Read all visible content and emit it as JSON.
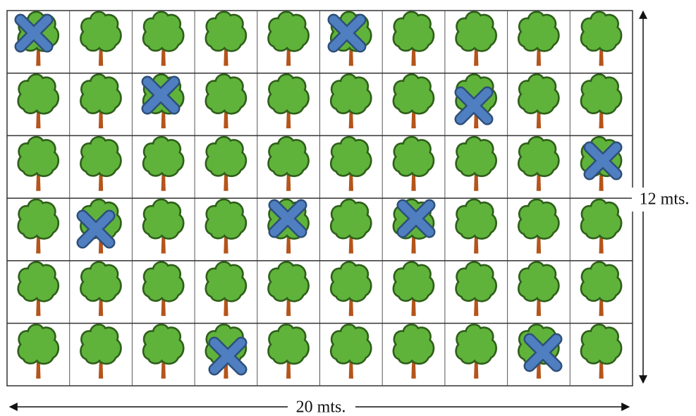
{
  "labels": {
    "height": "12 mts.",
    "width": "20 mts."
  }
}
